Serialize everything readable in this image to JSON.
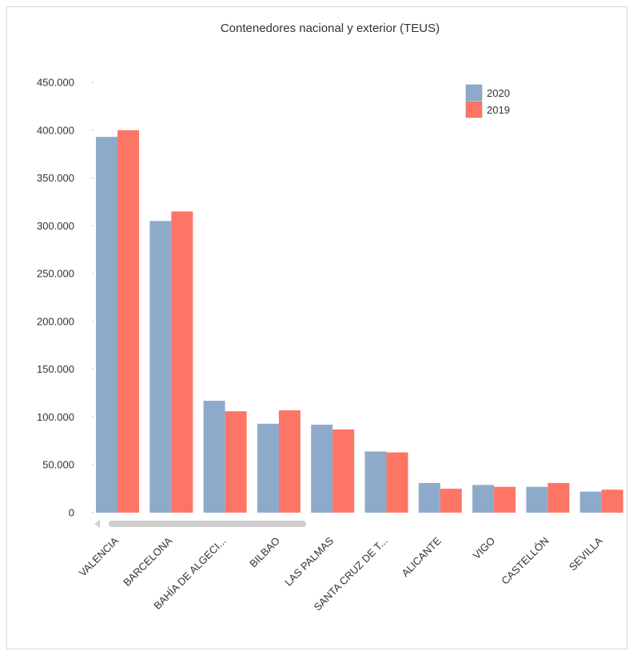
{
  "chart_data": {
    "type": "bar",
    "title": "Contenedores nacional y exterior (TEUS)",
    "categories": [
      "VALENCIA",
      "BARCELONA",
      "BAHÍA DE ALGECI...",
      "BILBAO",
      "LAS PALMAS",
      "SANTA CRUZ DE T...",
      "ALICANTE",
      "VIGO",
      "CASTELLÓN",
      "SEVILLA"
    ],
    "series": [
      {
        "name": "2020",
        "color": "#8eaacb",
        "values": [
          393000,
          305000,
          117000,
          93000,
          92000,
          64000,
          31000,
          29000,
          27000,
          22000
        ]
      },
      {
        "name": "2019",
        "color": "#fd7565",
        "values": [
          400000,
          315000,
          106000,
          107000,
          87000,
          63000,
          25000,
          27000,
          31000,
          24000
        ]
      }
    ],
    "yticks": [
      "0",
      "50.000",
      "100.000",
      "150.000",
      "200.000",
      "250.000",
      "300.000",
      "350.000",
      "400.000",
      "450.000"
    ],
    "ylim": [
      0,
      450000
    ],
    "xlabel": "",
    "ylabel": "",
    "legend_position": "top-right",
    "grid": false
  }
}
